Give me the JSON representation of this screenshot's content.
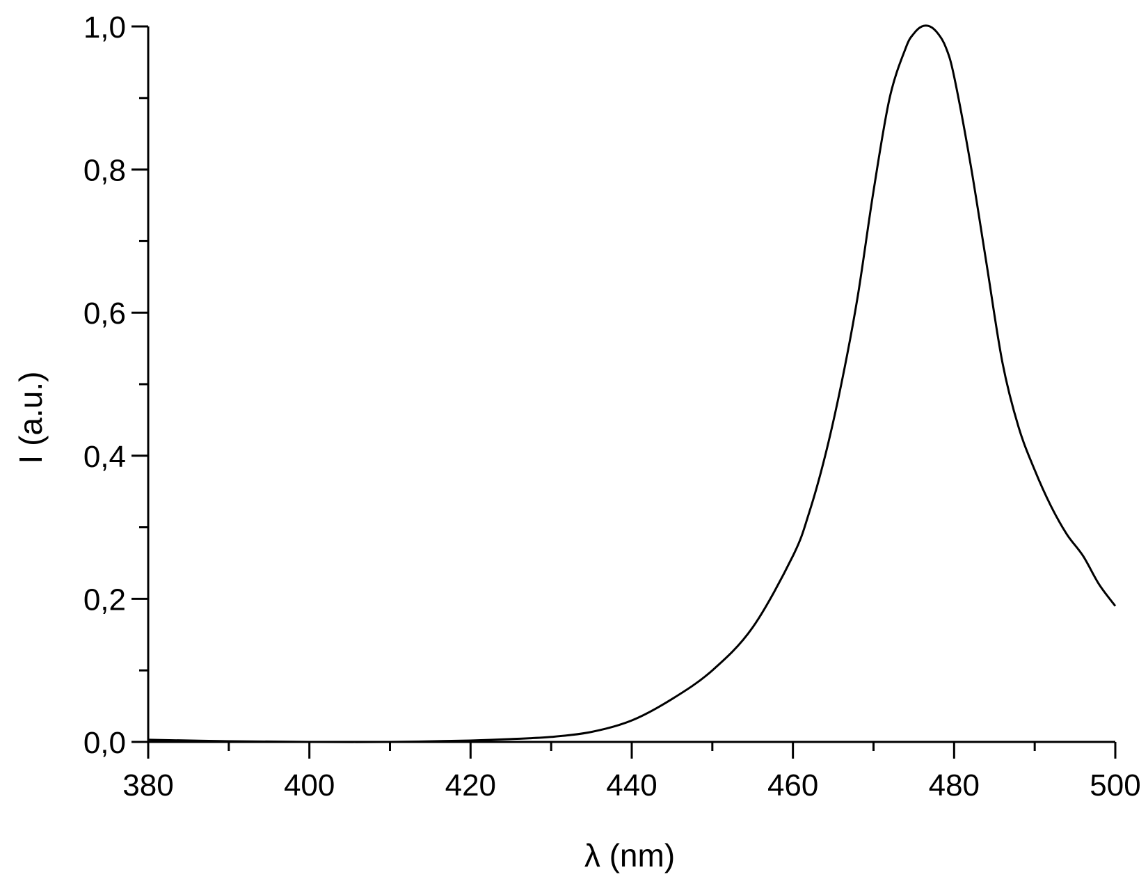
{
  "chart_data": {
    "type": "line",
    "xlabel": "λ (nm)",
    "ylabel": "I (a.u.)",
    "xlim": [
      380,
      500
    ],
    "ylim": [
      0.0,
      1.0
    ],
    "x_ticks": [
      380,
      400,
      420,
      440,
      460,
      480,
      500
    ],
    "x_tick_labels": [
      "380",
      "400",
      "420",
      "440",
      "460",
      "480",
      "500"
    ],
    "y_ticks": [
      0.0,
      0.2,
      0.4,
      0.6,
      0.8,
      1.0
    ],
    "y_tick_labels": [
      "0,0",
      "0,2",
      "0,4",
      "0,6",
      "0,8",
      "1,0"
    ],
    "x_minor_step": 10,
    "y_minor_step": 0.1,
    "grid": false,
    "series": [
      {
        "color": "#000000",
        "x": [
          380,
          390,
          400,
          410,
          420,
          425,
          430,
          435,
          440,
          445,
          450,
          455,
          460,
          462,
          464,
          466,
          468,
          470,
          472,
          474,
          475,
          476,
          477,
          478,
          479,
          480,
          482,
          484,
          486,
          488,
          490,
          492,
          494,
          496,
          498,
          500
        ],
        "y": [
          0.003,
          0.001,
          0.0,
          0.0,
          0.002,
          0.004,
          0.007,
          0.014,
          0.03,
          0.06,
          0.1,
          0.16,
          0.26,
          0.32,
          0.4,
          0.5,
          0.62,
          0.77,
          0.9,
          0.97,
          0.99,
          1.0,
          1.0,
          0.99,
          0.97,
          0.93,
          0.81,
          0.67,
          0.53,
          0.44,
          0.38,
          0.33,
          0.29,
          0.26,
          0.22,
          0.19
        ]
      }
    ]
  }
}
